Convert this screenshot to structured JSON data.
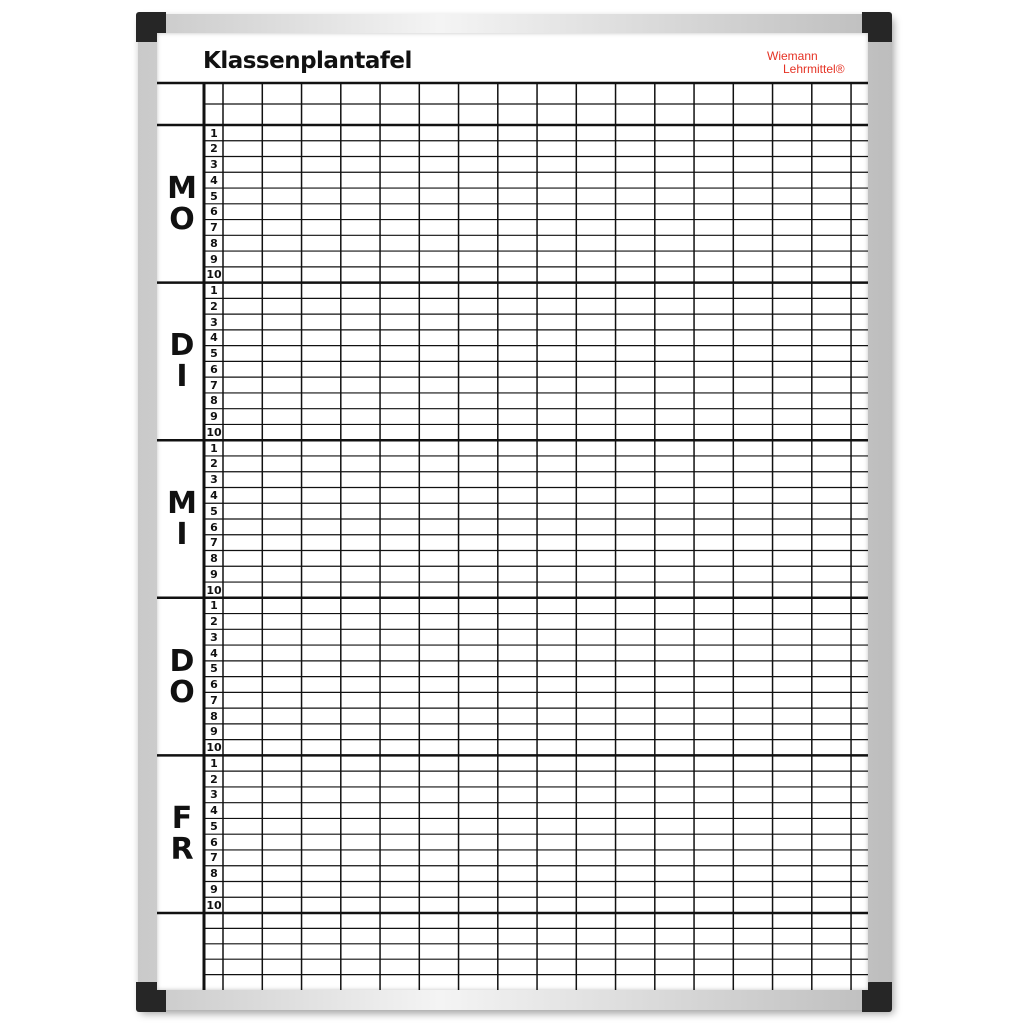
{
  "board": {
    "title": "Klassenplantafel",
    "logo": {
      "line1": "Wiemann",
      "line2": "Lehrmittel®",
      "color": "#e53224"
    },
    "days": [
      "MO",
      "DI",
      "MI",
      "DO",
      "FR"
    ],
    "periods": [
      "1",
      "2",
      "3",
      "4",
      "5",
      "6",
      "7",
      "8",
      "9",
      "10"
    ],
    "frame_color": "#d8d8d8",
    "corner_color": "#262626",
    "line_color": "#111111"
  }
}
